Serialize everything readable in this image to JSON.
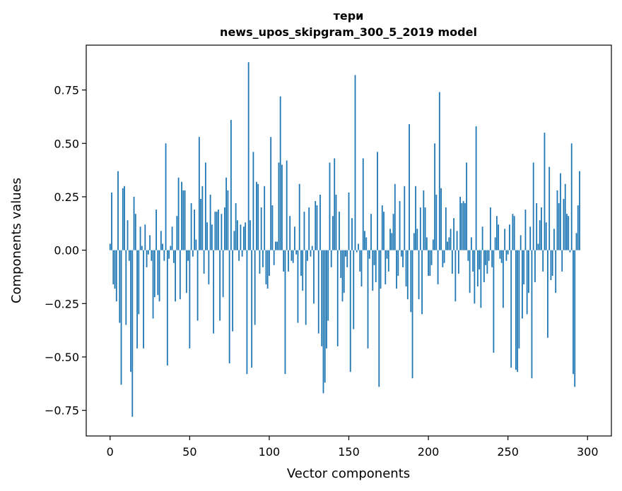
{
  "chart_data": {
    "type": "bar",
    "title": "тери",
    "subtitle": "news_upos_skipgram_300_5_2019 model",
    "xlabel": "Vector components",
    "ylabel": "Components values",
    "xlim": [
      -15,
      315
    ],
    "ylim": [
      -0.87,
      0.96
    ],
    "xticks": [
      0,
      50,
      100,
      150,
      200,
      250,
      300
    ],
    "yticks": [
      -0.75,
      -0.5,
      -0.25,
      0.0,
      0.25,
      0.5,
      0.75
    ],
    "ytick_labels": [
      "−0.75",
      "−0.50",
      "−0.25",
      "0.00",
      "0.25",
      "0.50",
      "0.75"
    ],
    "bar_color": "#1f77b4",
    "values": [
      0.03,
      0.27,
      -0.16,
      -0.18,
      -0.24,
      0.37,
      -0.34,
      -0.63,
      0.29,
      0.3,
      -0.35,
      0.14,
      -0.05,
      -0.57,
      -0.78,
      0.25,
      0.17,
      -0.46,
      -0.3,
      0.11,
      0.02,
      -0.46,
      0.12,
      -0.08,
      -0.02,
      0.07,
      -0.05,
      -0.32,
      -0.22,
      0.19,
      -0.21,
      -0.24,
      0.09,
      0.03,
      -0.05,
      0.5,
      -0.54,
      -0.04,
      0.02,
      0.11,
      -0.06,
      -0.24,
      0.16,
      0.34,
      -0.23,
      0.32,
      0.28,
      0.28,
      -0.2,
      -0.05,
      -0.46,
      0.22,
      -0.03,
      0.19,
      0.05,
      -0.33,
      0.53,
      0.24,
      0.3,
      -0.11,
      0.41,
      0.13,
      -0.16,
      0.26,
      0.12,
      -0.39,
      0.18,
      0.18,
      0.19,
      -0.33,
      0.17,
      -0.22,
      0.2,
      0.34,
      0.28,
      -0.53,
      0.61,
      -0.38,
      0.09,
      0.22,
      0.14,
      -0.05,
      0.12,
      -0.03,
      0.11,
      0.13,
      -0.58,
      0.88,
      0.14,
      -0.55,
      0.46,
      -0.35,
      0.32,
      0.31,
      -0.11,
      0.2,
      -0.08,
      0.3,
      -0.16,
      -0.18,
      -0.12,
      0.53,
      0.21,
      -0.07,
      0.04,
      0.04,
      0.41,
      0.72,
      0.4,
      -0.1,
      -0.58,
      0.42,
      -0.1,
      0.16,
      -0.05,
      -0.06,
      0.11,
      -0.02,
      -0.34,
      0.31,
      -0.12,
      -0.19,
      0.18,
      -0.35,
      -0.05,
      0.2,
      -0.03,
      0.02,
      -0.25,
      0.23,
      0.21,
      -0.39,
      0.26,
      -0.45,
      -0.67,
      -0.62,
      -0.46,
      -0.33,
      0.41,
      -0.08,
      0.16,
      0.43,
      0.26,
      -0.45,
      0.18,
      -0.13,
      -0.24,
      -0.2,
      -0.03,
      -0.08,
      0.27,
      -0.57,
      0.15,
      -0.37,
      0.82,
      -0.01,
      0.03,
      -0.1,
      -0.17,
      0.43,
      0.09,
      0.06,
      -0.46,
      -0.04,
      0.17,
      -0.19,
      -0.07,
      -0.15,
      0.46,
      -0.64,
      -0.18,
      0.21,
      0.18,
      -0.16,
      -0.04,
      -0.1,
      0.1,
      0.08,
      0.17,
      0.31,
      -0.18,
      -0.12,
      0.23,
      -0.03,
      -0.08,
      0.3,
      -0.17,
      -0.23,
      0.59,
      -0.29,
      -0.6,
      0.08,
      0.3,
      0.1,
      -0.23,
      0.2,
      -0.3,
      0.28,
      0.2,
      0.06,
      -0.12,
      -0.12,
      -0.07,
      0.05,
      0.5,
      0.26,
      -0.16,
      0.74,
      0.29,
      -0.08,
      -0.06,
      0.2,
      0.04,
      0.06,
      0.1,
      -0.11,
      0.15,
      -0.24,
      0.09,
      -0.11,
      0.25,
      0.22,
      0.23,
      0.22,
      0.41,
      -0.05,
      -0.2,
      0.06,
      -0.1,
      -0.25,
      0.58,
      -0.17,
      -0.09,
      -0.27,
      0.11,
      -0.15,
      -0.07,
      -0.11,
      -0.05,
      0.2,
      -0.08,
      -0.48,
      0.06,
      0.16,
      0.12,
      -0.04,
      -0.06,
      -0.27,
      0.1,
      -0.05,
      -0.02,
      0.12,
      -0.55,
      0.17,
      0.16,
      -0.56,
      -0.57,
      -0.46,
      0.07,
      -0.32,
      -0.16,
      0.19,
      -0.3,
      -0.2,
      0.11,
      -0.6,
      0.41,
      -0.15,
      0.22,
      0.03,
      0.14,
      0.2,
      -0.1,
      0.55,
      0.13,
      -0.41,
      0.39,
      -0.14,
      -0.12,
      0.1,
      -0.2,
      0.28,
      0.22,
      0.36,
      -0.1,
      0.24,
      0.31,
      0.17,
      0.16,
      -0.01,
      0.5,
      -0.58,
      -0.64,
      0.08,
      0.21,
      0.37
    ]
  }
}
